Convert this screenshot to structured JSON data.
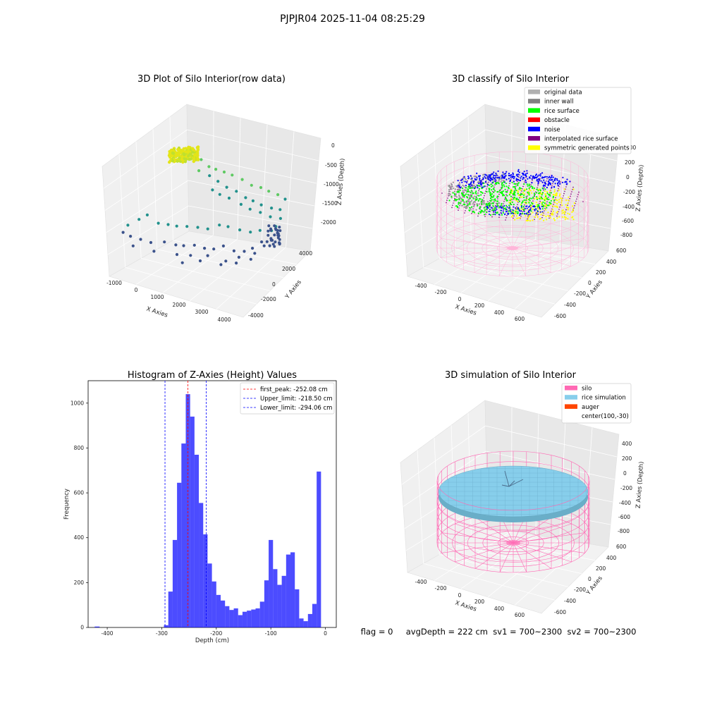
{
  "suptitle": "PJPJR04 2025-11-04 08:25:29",
  "panel_raw": {
    "title": "3D Plot of Silo Interior(row data)",
    "xlabel": "X Axies",
    "ylabel": "Y Axies",
    "zlabel": "Z Axies (Depth)",
    "xticks": [
      "-1000",
      "0",
      "1000",
      "2000",
      "3000",
      "4000"
    ],
    "yticks": [
      "4000",
      "2000",
      "0",
      "-2000",
      "-4000"
    ],
    "zticks": [
      "0",
      "-500",
      "-1000",
      "-1500",
      "-2000"
    ]
  },
  "panel_classify": {
    "title": "3D classify of Silo Interior",
    "xlabel": "X Axies",
    "ylabel": "Y Axies",
    "zlabel": "Z Axies (Depth)",
    "xticks": [
      "-400",
      "-200",
      "0",
      "200",
      "400",
      "600"
    ],
    "yticks": [
      "600",
      "400",
      "200",
      "0",
      "-200",
      "-400",
      "-600"
    ],
    "zticks": [
      "400",
      "200",
      "0",
      "-200",
      "-400",
      "-600",
      "-800"
    ],
    "legend": [
      {
        "label": "original data",
        "color": "#b0b0b0"
      },
      {
        "label": "inner wall",
        "color": "#808080"
      },
      {
        "label": "rice surface",
        "color": "#00ff00"
      },
      {
        "label": "obstacle",
        "color": "#ff0000"
      },
      {
        "label": "noise",
        "color": "#0000ff"
      },
      {
        "label": "interpolated rice surface",
        "color": "#800080"
      },
      {
        "label": "symmetric generated points",
        "color": "#ffff00"
      }
    ]
  },
  "panel_sim": {
    "title": "3D simulation of Silo Interior",
    "xlabel": "X Axies",
    "ylabel": "Y Axies",
    "zlabel": "Z Axies (Depth)",
    "xticks": [
      "-400",
      "-200",
      "0",
      "200",
      "400",
      "600"
    ],
    "yticks": [
      "600",
      "400",
      "200",
      "0",
      "-200",
      "-400",
      "-600"
    ],
    "zticks": [
      "400",
      "200",
      "0",
      "-200",
      "-400",
      "-600",
      "-800"
    ],
    "legend": [
      {
        "label": "silo",
        "color": "#ff69b4"
      },
      {
        "label": "rice simulation",
        "color": "#87ceeb"
      },
      {
        "label": "auger",
        "color": "#ff4500"
      },
      {
        "label": "center(100,-30)",
        "color": ""
      }
    ]
  },
  "status_text": "flag = 0     avgDepth = 222 cm  sv1 = 700~2300  sv2 = 700~2300",
  "chart_data": {
    "type": "bar",
    "title": "Histogram of Z-Axies (Height) Values",
    "xlabel": "Depth (cm)",
    "ylabel": "Frequency",
    "xlim": [
      -435,
      20
    ],
    "ylim": [
      0,
      1100
    ],
    "xticks": [
      -400,
      -300,
      -200,
      -100,
      0
    ],
    "yticks": [
      0,
      200,
      400,
      600,
      800,
      1000
    ],
    "bar_color": "#0000ff",
    "bins": [
      {
        "x0": -423,
        "x1": -414,
        "value": 4
      },
      {
        "x0": -296,
        "x1": -288,
        "value": 10
      },
      {
        "x0": -288,
        "x1": -280,
        "value": 160
      },
      {
        "x0": -280,
        "x1": -272,
        "value": 390
      },
      {
        "x0": -272,
        "x1": -264,
        "value": 645
      },
      {
        "x0": -264,
        "x1": -256,
        "value": 820
      },
      {
        "x0": -256,
        "x1": -248,
        "value": 1040
      },
      {
        "x0": -248,
        "x1": -240,
        "value": 940
      },
      {
        "x0": -240,
        "x1": -232,
        "value": 770
      },
      {
        "x0": -232,
        "x1": -224,
        "value": 555
      },
      {
        "x0": -224,
        "x1": -216,
        "value": 415
      },
      {
        "x0": -216,
        "x1": -208,
        "value": 285
      },
      {
        "x0": -208,
        "x1": -200,
        "value": 205
      },
      {
        "x0": -200,
        "x1": -192,
        "value": 145
      },
      {
        "x0": -192,
        "x1": -184,
        "value": 120
      },
      {
        "x0": -184,
        "x1": -176,
        "value": 95
      },
      {
        "x0": -176,
        "x1": -168,
        "value": 78
      },
      {
        "x0": -168,
        "x1": -160,
        "value": 85
      },
      {
        "x0": -160,
        "x1": -152,
        "value": 55
      },
      {
        "x0": -152,
        "x1": -144,
        "value": 70
      },
      {
        "x0": -144,
        "x1": -136,
        "value": 75
      },
      {
        "x0": -136,
        "x1": -128,
        "value": 80
      },
      {
        "x0": -128,
        "x1": -120,
        "value": 85
      },
      {
        "x0": -120,
        "x1": -112,
        "value": 115
      },
      {
        "x0": -112,
        "x1": -104,
        "value": 210
      },
      {
        "x0": -104,
        "x1": -96,
        "value": 390
      },
      {
        "x0": -96,
        "x1": -88,
        "value": 260
      },
      {
        "x0": -88,
        "x1": -80,
        "value": 190
      },
      {
        "x0": -80,
        "x1": -72,
        "value": 230
      },
      {
        "x0": -72,
        "x1": -64,
        "value": 325
      },
      {
        "x0": -64,
        "x1": -56,
        "value": 335
      },
      {
        "x0": -56,
        "x1": -48,
        "value": 170
      },
      {
        "x0": -48,
        "x1": -40,
        "value": 40
      },
      {
        "x0": -40,
        "x1": -32,
        "value": 28
      },
      {
        "x0": -32,
        "x1": -24,
        "value": 60
      },
      {
        "x0": -24,
        "x1": -16,
        "value": 105
      },
      {
        "x0": -16,
        "x1": -8,
        "value": 695
      }
    ],
    "vlines": [
      {
        "x": -252.08,
        "color": "#ff0000",
        "label": "first_peak: -252.08 cm"
      },
      {
        "x": -218.5,
        "color": "#0000ff",
        "label": "Upper_limit: -218.50 cm"
      },
      {
        "x": -294.06,
        "color": "#0000ff",
        "label": "Lower_limit: -294.06 cm"
      }
    ],
    "legend_position": "upper right"
  }
}
